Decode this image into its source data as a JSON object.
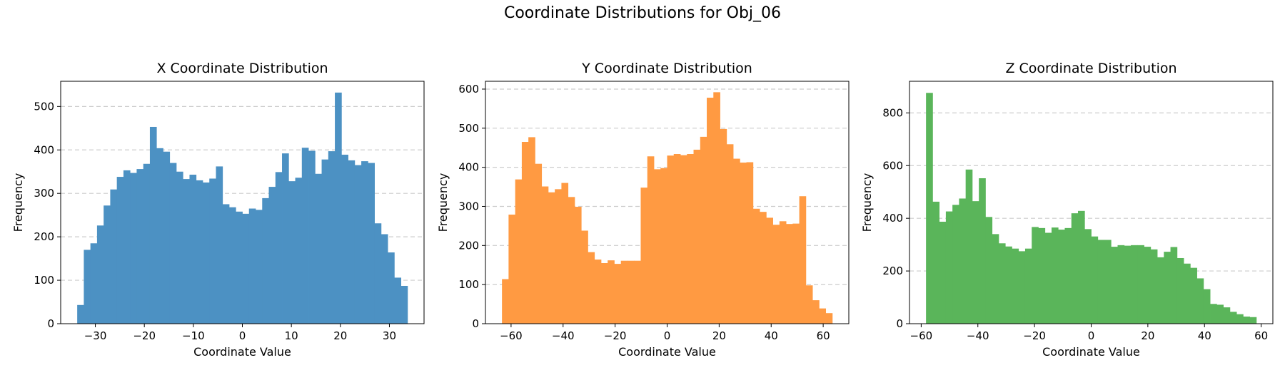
{
  "figure": {
    "title": "Coordinate Distributions for Obj_06"
  },
  "chart_data": [
    {
      "type": "bar",
      "title": "X Coordinate Distribution",
      "xlabel": "Coordinate Value",
      "ylabel": "Frequency",
      "color": "#4c91c3",
      "bin_start": -33.7,
      "bin_width": 1.348,
      "xlim": [
        -37.07,
        37.07
      ],
      "ylim": [
        0,
        558
      ],
      "xticks": [
        -30,
        -20,
        -10,
        0,
        10,
        20,
        30
      ],
      "yticks": [
        0,
        100,
        200,
        300,
        400,
        500
      ],
      "grid": "y-dashed",
      "values": [
        43,
        170,
        185,
        226,
        272,
        309,
        338,
        353,
        347,
        356,
        368,
        453,
        404,
        396,
        370,
        350,
        333,
        343,
        330,
        325,
        334,
        362,
        275,
        268,
        258,
        253,
        265,
        262,
        289,
        315,
        349,
        392,
        328,
        336,
        405,
        398,
        345,
        378,
        397,
        532,
        389,
        376,
        365,
        374,
        370,
        231,
        206,
        164,
        106,
        87
      ]
    },
    {
      "type": "bar",
      "title": "Y Coordinate Distribution",
      "xlabel": "Coordinate Value",
      "ylabel": "Frequency",
      "color": "#ff9a42",
      "bin_start": -63.5,
      "bin_width": 2.54,
      "xlim": [
        -69.85,
        69.85
      ],
      "ylim": [
        0,
        620
      ],
      "xticks": [
        -60,
        -40,
        -20,
        0,
        20,
        40,
        60
      ],
      "yticks": [
        0,
        100,
        200,
        300,
        400,
        500,
        600
      ],
      "grid": "y-dashed",
      "values": [
        114,
        279,
        369,
        465,
        477,
        409,
        351,
        336,
        344,
        360,
        324,
        299,
        238,
        183,
        164,
        155,
        162,
        153,
        161,
        161,
        161,
        348,
        428,
        395,
        398,
        430,
        434,
        431,
        434,
        445,
        478,
        578,
        592,
        498,
        459,
        422,
        412,
        413,
        294,
        286,
        271,
        253,
        262,
        255,
        256,
        326,
        98,
        60,
        39,
        27
      ]
    },
    {
      "type": "bar",
      "title": "Z Coordinate Distribution",
      "xlabel": "Coordinate Value",
      "ylabel": "Frequency",
      "color": "#5ab55a",
      "bin_start": -58.3,
      "bin_width": 2.332,
      "xlim": [
        -64.13,
        64.13
      ],
      "ylim": [
        0,
        920
      ],
      "xticks": [
        -60,
        -40,
        -20,
        0,
        20,
        40,
        60
      ],
      "yticks": [
        0,
        200,
        400,
        600,
        800
      ],
      "grid": "y-dashed",
      "values": [
        876,
        463,
        387,
        426,
        451,
        475,
        585,
        465,
        552,
        405,
        340,
        305,
        293,
        285,
        275,
        285,
        367,
        363,
        345,
        365,
        357,
        363,
        419,
        428,
        359,
        331,
        318,
        318,
        292,
        298,
        296,
        298,
        298,
        292,
        282,
        252,
        273,
        291,
        249,
        228,
        212,
        172,
        131,
        75,
        72,
        62,
        45,
        36,
        27,
        25
      ]
    }
  ]
}
